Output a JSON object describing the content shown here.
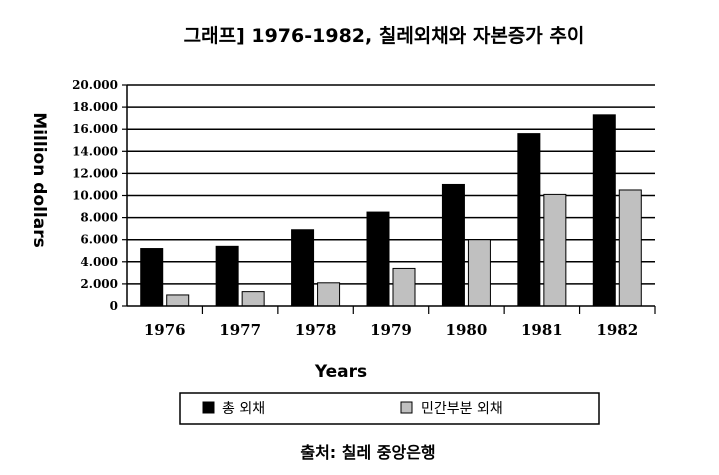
{
  "chart_data": {
    "type": "bar",
    "title": "그래프] 1976-1982, 칠레외채와 자본증가 추이",
    "xlabel": "Years",
    "ylabel": "Million dollars",
    "categories": [
      "1976",
      "1977",
      "1978",
      "1979",
      "1980",
      "1981",
      "1982"
    ],
    "series": [
      {
        "name": "총 외채",
        "color": "#000000",
        "values": [
          5200,
          5400,
          6900,
          8500,
          11000,
          15600,
          17300
        ]
      },
      {
        "name": "민간부분 외채",
        "color": "#c0c0c0",
        "values": [
          1000,
          1300,
          2100,
          3400,
          6000,
          10100,
          10500
        ]
      }
    ],
    "ylim": [
      0,
      20000
    ],
    "yticks": [
      0,
      2000,
      4000,
      6000,
      8000,
      10000,
      12000,
      14000,
      16000,
      18000,
      20000
    ],
    "ytick_labels": [
      "0",
      "2.000",
      "4.000",
      "6.000",
      "8.000",
      "10.000",
      "12.000",
      "14.000",
      "16.000",
      "18.000",
      "20.000"
    ],
    "grid": true,
    "legend_position": "bottom",
    "source": "출처: 칠레 중앙은행"
  }
}
